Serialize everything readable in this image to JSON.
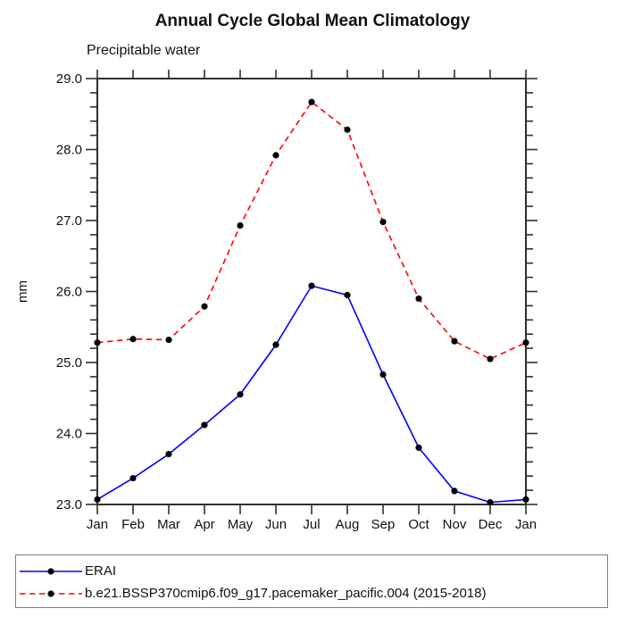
{
  "title": "Annual Cycle Global Mean Climatology",
  "subtitle": "Precipitable water",
  "chart_data": {
    "type": "line",
    "title": "Annual Cycle Global Mean Climatology",
    "subtitle": "Precipitable water",
    "xlabel": "",
    "ylabel": "mm",
    "categories": [
      "Jan",
      "Feb",
      "Mar",
      "Apr",
      "May",
      "Jun",
      "Jul",
      "Aug",
      "Sep",
      "Oct",
      "Nov",
      "Dec",
      "Jan"
    ],
    "ylim": [
      23.0,
      29.0
    ],
    "ytick_major_step": 1.0,
    "ytick_minor_step": 0.2,
    "ytick_labels": [
      "23.0",
      "24.0",
      "25.0",
      "26.0",
      "27.0",
      "28.0",
      "29.0"
    ],
    "grid": "off",
    "legend_position": "bottom",
    "marker": "filled-circle",
    "marker_color": "#000000",
    "series": [
      {
        "name": "ERAI",
        "color": "#0000ff",
        "style": "solid",
        "values": [
          23.07,
          23.37,
          23.71,
          24.12,
          24.55,
          25.25,
          26.08,
          25.95,
          24.83,
          23.8,
          23.19,
          23.03,
          23.07
        ]
      },
      {
        "name": "b.e21.BSSP370cmip6.f09_g17.pacemaker_pacific.004 (2015-2018)",
        "color": "#ff0000",
        "style": "dashed",
        "values": [
          25.28,
          25.33,
          25.32,
          25.79,
          26.93,
          27.92,
          28.67,
          28.28,
          26.98,
          25.9,
          25.3,
          25.05,
          25.28
        ]
      }
    ]
  }
}
